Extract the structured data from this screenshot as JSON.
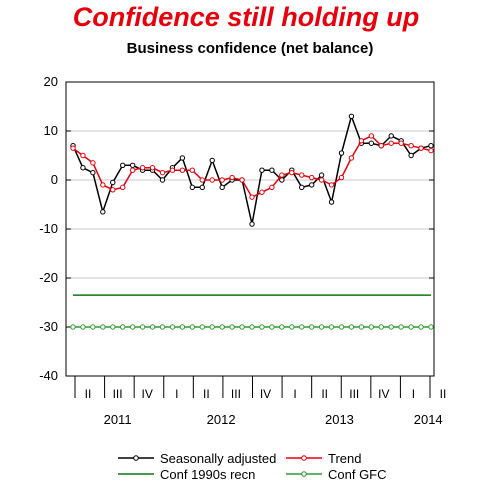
{
  "chart_data": {
    "type": "line",
    "title": "Confidence still holding up",
    "subtitle": "Business confidence (net balance)",
    "ylim": [
      -40,
      20
    ],
    "yticks": [
      20,
      10,
      0,
      -10,
      -20,
      -30,
      -40
    ],
    "quarter_labels": [
      "II",
      "III",
      "IV",
      "I",
      "II",
      "III",
      "IV",
      "I",
      "II",
      "III",
      "IV",
      "I",
      "II"
    ],
    "year_labels": [
      {
        "label": "2011",
        "quarter_index": 1
      },
      {
        "label": "2012",
        "quarter_index": 4.5
      },
      {
        "label": "2013",
        "quarter_index": 8.5
      },
      {
        "label": "2014",
        "quarter_index": 11.5
      }
    ],
    "series": [
      {
        "name": "Seasonally adjusted",
        "color": "#000000",
        "markers": true,
        "values": [
          7,
          2.5,
          1.5,
          -6.5,
          -0.5,
          3,
          3,
          2,
          2,
          0,
          2.5,
          4.5,
          -1.5,
          -1.5,
          4,
          -1.5,
          0,
          0,
          -9,
          2,
          2,
          0,
          2,
          -1.5,
          -1,
          1,
          -4.5,
          5.5,
          13,
          7.5,
          7.5,
          7,
          9,
          8,
          5,
          6.5,
          7
        ]
      },
      {
        "name": "Trend",
        "color": "#e8000b",
        "markers": true,
        "values": [
          6.5,
          5,
          3.5,
          -1,
          -2,
          -1.5,
          2,
          2.5,
          2.5,
          1.5,
          2,
          2,
          2,
          0,
          0,
          0,
          0.5,
          0,
          -3.5,
          -2.5,
          -1.5,
          1,
          1.5,
          1,
          0.5,
          0,
          -1,
          0.5,
          4.5,
          8,
          9,
          7,
          7.5,
          7.5,
          7,
          6.5,
          6
        ]
      },
      {
        "name": "Conf 1990s recn",
        "color": "#0a7a0a",
        "markers": false,
        "values": [
          -23.5,
          -23.5,
          -23.5,
          -23.5,
          -23.5,
          -23.5,
          -23.5,
          -23.5,
          -23.5,
          -23.5,
          -23.5,
          -23.5,
          -23.5,
          -23.5,
          -23.5,
          -23.5,
          -23.5,
          -23.5,
          -23.5,
          -23.5,
          -23.5,
          -23.5,
          -23.5,
          -23.5,
          -23.5,
          -23.5,
          -23.5,
          -23.5,
          -23.5,
          -23.5,
          -23.5,
          -23.5,
          -23.5,
          -23.5,
          -23.5,
          -23.5,
          -23.5
        ]
      },
      {
        "name": "Conf GFC",
        "color": "#2e9a2e",
        "markers": true,
        "values": [
          -30,
          -30,
          -30,
          -30,
          -30,
          -30,
          -30,
          -30,
          -30,
          -30,
          -30,
          -30,
          -30,
          -30,
          -30,
          -30,
          -30,
          -30,
          -30,
          -30,
          -30,
          -30,
          -30,
          -30,
          -30,
          -30,
          -30,
          -30,
          -30,
          -30,
          -30,
          -30,
          -30,
          -30,
          -30,
          -30,
          -30
        ]
      }
    ],
    "grid": true,
    "legend_position": "bottom"
  }
}
